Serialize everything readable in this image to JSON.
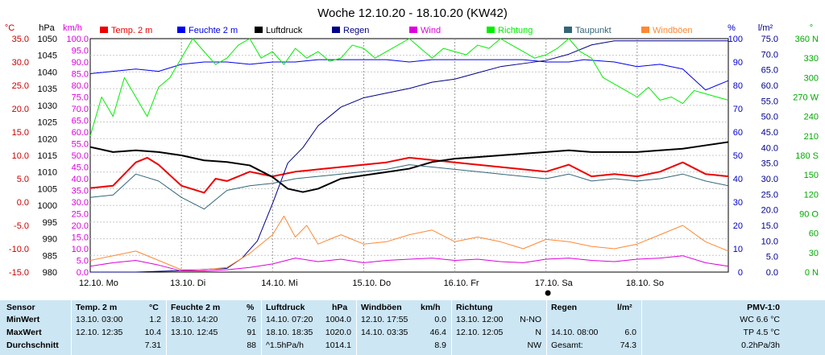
{
  "chart_data": {
    "type": "line",
    "title": "Woche 12.10.20 - 18.10.20 (KW42)",
    "x_ticks": [
      "12.10. Mo",
      "13.10. Di",
      "14.10. Mi",
      "15.10. Do",
      "16.10. Fr",
      "17.10. Sa",
      "18.10. So"
    ],
    "x_range_hours": [
      0,
      168
    ],
    "grid": true,
    "legend_placement": "top",
    "axes": {
      "temp": {
        "unit": "°C",
        "range": [
          -15,
          35
        ],
        "ticks": [
          "35.0",
          "30.0",
          "25.0",
          "20.0",
          "15.0",
          "10.0",
          "5.0",
          "0.0",
          "-5.0",
          "-10.0",
          "-15.0"
        ],
        "color": "#cc0000"
      },
      "pressure": {
        "unit": "hPa",
        "range": [
          980,
          1050
        ],
        "ticks": [
          "1050",
          "1045",
          "1040",
          "1035",
          "1030",
          "1025",
          "1020",
          "1015",
          "1010",
          "1005",
          "1000",
          "995",
          "990",
          "985",
          "980"
        ],
        "color": "#000000"
      },
      "wind": {
        "unit": "km/h",
        "range": [
          0,
          100
        ],
        "ticks": [
          "100.0",
          "95.0",
          "90.0",
          "85.0",
          "80.0",
          "75.0",
          "70.0",
          "65.0",
          "60.0",
          "55.0",
          "50.0",
          "45.0",
          "40.0",
          "35.0",
          "30.0",
          "25.0",
          "20.0",
          "15.0",
          "10.0",
          "5.0",
          "0.0"
        ],
        "color": "#dd00dd"
      },
      "humidity": {
        "unit": "%",
        "range": [
          0,
          100
        ],
        "ticks": [
          "100",
          "90",
          "80",
          "70",
          "60",
          "50",
          "40",
          "30",
          "20",
          "10",
          "0"
        ],
        "color": "#0000cc"
      },
      "rain": {
        "unit": "l/m²",
        "range": [
          0,
          75
        ],
        "ticks": [
          "75.0",
          "70.0",
          "65.0",
          "60.0",
          "55.0",
          "50.0",
          "45.0",
          "40.0",
          "35.0",
          "30.0",
          "25.0",
          "20.0",
          "15.0",
          "10.0",
          "5.0",
          "0.0"
        ],
        "color": "#000088"
      },
      "direction": {
        "unit": "°",
        "range": [
          0,
          360
        ],
        "ticks": [
          "360 N",
          "330",
          "300",
          "270 W",
          "240",
          "210",
          "180 S",
          "150",
          "120",
          "90 O",
          "60",
          "30",
          "0 N"
        ],
        "color": "#00aa00"
      }
    },
    "series": [
      {
        "name": "Temp. 2 m",
        "color": "#ee0000",
        "axis": "temp",
        "x": [
          0,
          6,
          12,
          15,
          18,
          24,
          30,
          33,
          36,
          42,
          48,
          54,
          60,
          66,
          72,
          78,
          84,
          90,
          96,
          102,
          108,
          114,
          120,
          126,
          132,
          138,
          144,
          150,
          156,
          162,
          168
        ],
        "values": [
          3.0,
          3.5,
          8.5,
          9.5,
          8.0,
          3.5,
          2.0,
          5.0,
          4.5,
          6.5,
          5.5,
          6.5,
          7.0,
          7.5,
          8.0,
          8.5,
          9.5,
          9.0,
          8.5,
          8.0,
          7.5,
          7.0,
          6.5,
          8.0,
          5.5,
          6.0,
          5.5,
          6.5,
          8.5,
          6.0,
          5.5
        ]
      },
      {
        "name": "Feuchte 2 m",
        "color": "#0000ee",
        "axis": "humidity",
        "x": [
          0,
          6,
          12,
          18,
          24,
          30,
          36,
          42,
          48,
          54,
          60,
          66,
          72,
          78,
          84,
          90,
          96,
          102,
          108,
          114,
          120,
          126,
          130,
          138,
          144,
          150,
          156,
          162,
          168
        ],
        "values": [
          85,
          86,
          87,
          86,
          89,
          90,
          90,
          89,
          90,
          90,
          91,
          91,
          91,
          91,
          90,
          91,
          91,
          91,
          91,
          91,
          90,
          90,
          91,
          90,
          88,
          89,
          87,
          78,
          82
        ]
      },
      {
        "name": "Luftdruck",
        "color": "#000000",
        "axis": "pressure",
        "x": [
          0,
          6,
          12,
          18,
          24,
          30,
          36,
          42,
          48,
          52,
          56,
          60,
          66,
          72,
          78,
          84,
          90,
          96,
          102,
          108,
          114,
          120,
          126,
          132,
          138,
          144,
          150,
          156,
          162,
          168
        ],
        "values": [
          1017.5,
          1016,
          1016.5,
          1016,
          1015,
          1013.5,
          1013,
          1012,
          1008.5,
          1005,
          1004,
          1005,
          1008,
          1009,
          1010,
          1011,
          1013,
          1014,
          1014.5,
          1015,
          1015.5,
          1016,
          1016.5,
          1016,
          1016,
          1016,
          1016.5,
          1017,
          1018,
          1019
        ]
      },
      {
        "name": "Regen",
        "color": "#000088",
        "axis": "rain",
        "x": [
          0,
          12,
          24,
          36,
          40,
          44,
          48,
          52,
          56,
          60,
          66,
          72,
          78,
          84,
          90,
          96,
          102,
          108,
          114,
          120,
          126,
          132,
          138,
          144,
          150,
          156,
          162,
          168
        ],
        "values": [
          0,
          0,
          0.5,
          1.2,
          4.5,
          10,
          22,
          35,
          40,
          47,
          53,
          56,
          57.5,
          59,
          61,
          62,
          64,
          66,
          67,
          68,
          70,
          73,
          74.3,
          74.3,
          74.3,
          74.3,
          74.3,
          74.3
        ]
      },
      {
        "name": "Wind",
        "color": "#dd00dd",
        "axis": "wind",
        "x": [
          0,
          6,
          12,
          18,
          24,
          30,
          36,
          42,
          48,
          54,
          60,
          66,
          72,
          78,
          84,
          90,
          96,
          102,
          108,
          114,
          120,
          126,
          132,
          138,
          144,
          150,
          156,
          162,
          168
        ],
        "values": [
          2.5,
          4,
          5,
          3,
          0.5,
          0.5,
          1,
          2,
          3.5,
          6,
          4.5,
          5.5,
          4,
          5,
          5.5,
          6,
          5,
          5.5,
          4.5,
          4,
          5.5,
          6,
          5,
          4.5,
          5.5,
          6,
          7,
          4,
          2.5
        ]
      },
      {
        "name": "Richtung",
        "color": "#00ee00",
        "axis": "direction",
        "x": [
          0,
          3,
          6,
          9,
          12,
          15,
          18,
          21,
          24,
          27,
          30,
          33,
          36,
          39,
          42,
          45,
          48,
          51,
          54,
          57,
          60,
          63,
          66,
          69,
          72,
          75,
          78,
          81,
          84,
          87,
          90,
          93,
          96,
          99,
          102,
          105,
          108,
          111,
          114,
          117,
          120,
          123,
          126,
          129,
          132,
          135,
          138,
          141,
          144,
          147,
          150,
          153,
          156,
          159,
          162,
          165,
          168
        ],
        "values": [
          210,
          270,
          240,
          300,
          270,
          240,
          285,
          300,
          330,
          360,
          340,
          320,
          330,
          350,
          360,
          330,
          340,
          320,
          345,
          330,
          340,
          325,
          330,
          350,
          345,
          330,
          340,
          350,
          360,
          345,
          330,
          345,
          340,
          335,
          350,
          345,
          360,
          350,
          340,
          330,
          335,
          345,
          360,
          340,
          330,
          300,
          290,
          280,
          270,
          285,
          265,
          270,
          260,
          280,
          275,
          270,
          265
        ]
      },
      {
        "name": "Taupunkt",
        "color": "#336677",
        "axis": "temp",
        "x": [
          0,
          6,
          12,
          18,
          24,
          30,
          36,
          42,
          48,
          54,
          60,
          66,
          72,
          78,
          84,
          90,
          96,
          102,
          108,
          114,
          120,
          126,
          132,
          138,
          144,
          150,
          156,
          162,
          168
        ],
        "values": [
          1.0,
          1.5,
          6.0,
          4.5,
          1.0,
          -1.5,
          2.5,
          3.5,
          4.0,
          5.0,
          5.5,
          6.0,
          6.5,
          7.0,
          8.0,
          7.5,
          7.0,
          6.5,
          6.0,
          5.5,
          5.0,
          6.0,
          4.5,
          5.0,
          4.5,
          5.0,
          6.0,
          4.5,
          3.5
        ]
      },
      {
        "name": "Windböen",
        "color": "#ff8833",
        "axis": "wind",
        "x": [
          0,
          6,
          12,
          18,
          24,
          30,
          36,
          42,
          48,
          51,
          54,
          57,
          60,
          66,
          72,
          78,
          84,
          90,
          96,
          102,
          108,
          114,
          120,
          126,
          132,
          138,
          144,
          150,
          156,
          162,
          168
        ],
        "values": [
          5,
          7,
          9,
          5,
          1,
          1,
          2,
          8,
          16,
          24,
          15,
          20,
          12,
          16,
          12,
          13,
          16,
          18,
          13,
          15,
          13,
          10,
          14,
          13,
          11,
          10,
          12,
          16,
          20,
          13,
          9
        ]
      }
    ]
  },
  "stats": {
    "headers": {
      "sensor": "Sensor",
      "temp": "Temp. 2 m",
      "temp_unit": "°C",
      "hum": "Feuchte 2 m",
      "hum_unit": "%",
      "press": "Luftdruck",
      "press_unit": "hPa",
      "gust": "Windböen",
      "gust_unit": "km/h",
      "dir": "Richtung",
      "rain": "Regen",
      "rain_unit": "l/m²",
      "pmv": "PMV-1:0"
    },
    "row_labels": {
      "min": "MinWert",
      "max": "MaxWert",
      "avg": "Durchschnitt"
    },
    "temp": {
      "min_time": "13.10. 03:00",
      "min_val": "1.2",
      "max_time": "12.10. 12:35",
      "max_val": "10.4",
      "avg": "7.31"
    },
    "hum": {
      "min_time": "18.10. 14:20",
      "min_val": "76",
      "max_time": "13.10. 12:45",
      "max_val": "91",
      "avg": "88"
    },
    "press": {
      "min_time": "14.10. 07:20",
      "min_val": "1004.0",
      "max_time": "18.10. 18:35",
      "max_val": "1020.0",
      "trend": "^1.5hPa/h",
      "avg": "1014.1"
    },
    "gust": {
      "min_time": "12.10. 17:55",
      "min_val": "0.0",
      "max_time": "14.10. 03:35",
      "max_val": "46.4",
      "avg": "8.9"
    },
    "dir": {
      "min_time": "13.10. 12:00",
      "min_val": "N-NO",
      "max_time": "12.10. 12:05",
      "max_val": "N",
      "avg": "NW"
    },
    "rain": {
      "max_time": "14.10. 08:00",
      "max_val": "6.0",
      "total_label": "Gesamt:",
      "total": "74.3"
    },
    "pmv": {
      "wc": "WC 6.6 °C",
      "tp": "TP 4.5 °C",
      "rate": "0.2hPa/3h"
    }
  }
}
